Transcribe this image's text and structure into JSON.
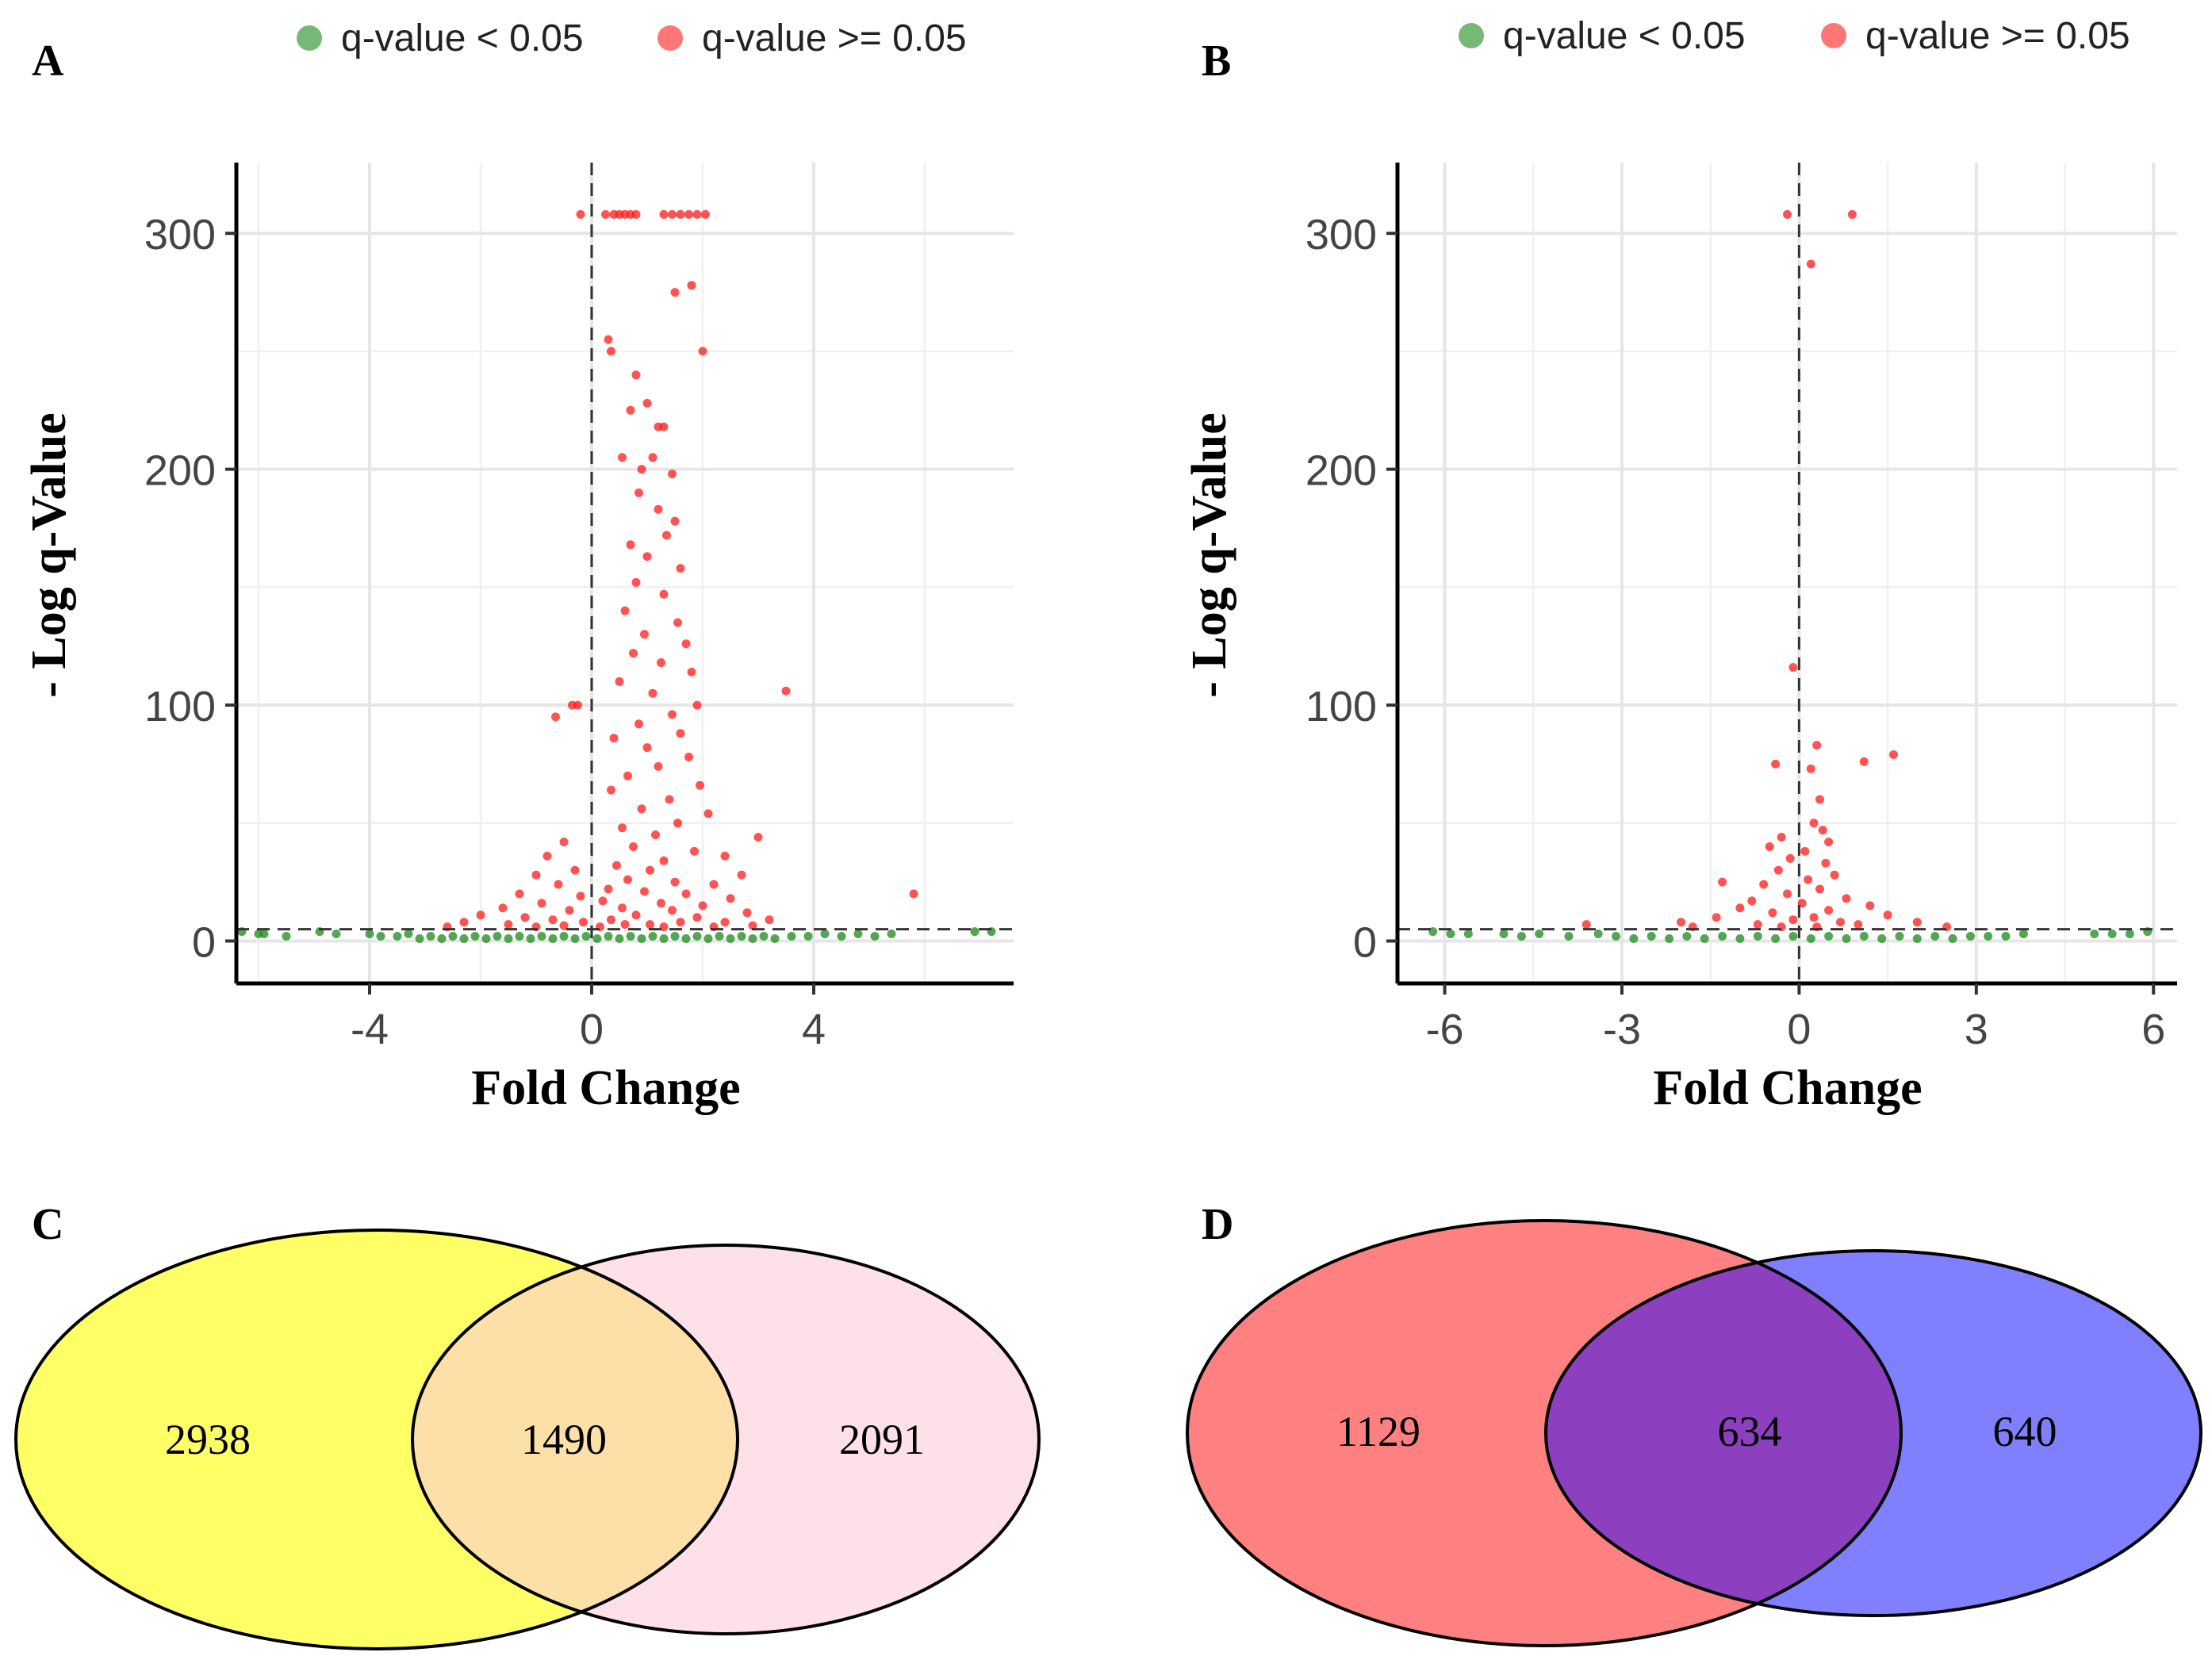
{
  "colors": {
    "significant": "#1a8a1a",
    "nonsignificant": "#ff1a1a",
    "venn_c_left": "#ffff66",
    "venn_c_right": "#fde0e8",
    "venn_c_overlap": "#fde0a8",
    "venn_d_left": "#ff8080",
    "venn_d_right": "#8080ff",
    "venn_d_overlap": "#8c40c0"
  },
  "chart_data": [
    {
      "panel": "A",
      "type": "scatter",
      "title": "",
      "xlabel": "Fold Change",
      "ylabel": "- Log q-Value",
      "xlim": [
        -6.4,
        7.6
      ],
      "ylim": [
        -18,
        330
      ],
      "xticks": [
        -4,
        0,
        4
      ],
      "xtick_labels": [
        "-4",
        "0",
        "4"
      ],
      "yticks": [
        0,
        100,
        200,
        300
      ],
      "ytick_labels": [
        "0",
        "100",
        "200",
        "300"
      ],
      "threshold_y": 5,
      "threshold_x": 0,
      "legend": [
        {
          "label": "q-value < 0.05",
          "color_key": "significant"
        },
        {
          "label": "q-value >= 0.05",
          "color_key": "nonsignificant"
        }
      ],
      "series": [
        {
          "name": "q-value >= 0.05",
          "color_key": "nonsignificant",
          "points": [
            [
              -0.2,
              308
            ],
            [
              0.25,
              308
            ],
            [
              0.4,
              308
            ],
            [
              0.5,
              308
            ],
            [
              0.6,
              308
            ],
            [
              0.7,
              308
            ],
            [
              0.8,
              308
            ],
            [
              1.3,
              308
            ],
            [
              1.45,
              308
            ],
            [
              1.6,
              308
            ],
            [
              1.75,
              308
            ],
            [
              1.9,
              308
            ],
            [
              2.05,
              308
            ],
            [
              1.5,
              275
            ],
            [
              1.8,
              278
            ],
            [
              2.0,
              250
            ],
            [
              0.3,
              255
            ],
            [
              0.35,
              250
            ],
            [
              0.8,
              240
            ],
            [
              1.0,
              228
            ],
            [
              0.7,
              225
            ],
            [
              1.2,
              218
            ],
            [
              1.3,
              218
            ],
            [
              1.1,
              205
            ],
            [
              0.55,
              205
            ],
            [
              0.9,
              200
            ],
            [
              1.45,
              198
            ],
            [
              0.85,
              190
            ],
            [
              1.2,
              183
            ],
            [
              1.5,
              178
            ],
            [
              1.35,
              172
            ],
            [
              0.7,
              168
            ],
            [
              1.0,
              163
            ],
            [
              1.6,
              158
            ],
            [
              0.8,
              152
            ],
            [
              1.3,
              147
            ],
            [
              0.6,
              140
            ],
            [
              1.55,
              135
            ],
            [
              0.95,
              130
            ],
            [
              1.7,
              126
            ],
            [
              0.75,
              122
            ],
            [
              1.25,
              118
            ],
            [
              1.8,
              114
            ],
            [
              0.5,
              110
            ],
            [
              1.1,
              105
            ],
            [
              3.5,
              106
            ],
            [
              -0.35,
              100
            ],
            [
              -0.25,
              100
            ],
            [
              1.9,
              100
            ],
            [
              1.45,
              96
            ],
            [
              0.85,
              92
            ],
            [
              1.6,
              88
            ],
            [
              -0.65,
              95
            ],
            [
              0.4,
              86
            ],
            [
              1.0,
              82
            ],
            [
              1.75,
              78
            ],
            [
              1.2,
              74
            ],
            [
              0.65,
              70
            ],
            [
              1.95,
              66
            ],
            [
              0.35,
              64
            ],
            [
              1.4,
              60
            ],
            [
              0.9,
              56
            ],
            [
              2.1,
              54
            ],
            [
              1.55,
              50
            ],
            [
              0.55,
              48
            ],
            [
              1.15,
              45
            ],
            [
              3.0,
              44
            ],
            [
              -0.5,
              42
            ],
            [
              0.75,
              40
            ],
            [
              1.85,
              38
            ],
            [
              2.4,
              36
            ],
            [
              -0.8,
              36
            ],
            [
              1.3,
              34
            ],
            [
              0.45,
              32
            ],
            [
              1.05,
              30
            ],
            [
              2.7,
              28
            ],
            [
              -0.3,
              30
            ],
            [
              -1.0,
              28
            ],
            [
              0.65,
              26
            ],
            [
              1.5,
              25
            ],
            [
              2.2,
              24
            ],
            [
              -0.6,
              24
            ],
            [
              0.3,
              22
            ],
            [
              0.95,
              21
            ],
            [
              1.7,
              20
            ],
            [
              -1.3,
              20
            ],
            [
              -0.2,
              19
            ],
            [
              2.5,
              18
            ],
            [
              5.8,
              20
            ],
            [
              0.2,
              17
            ],
            [
              1.25,
              16
            ],
            [
              -0.9,
              16
            ],
            [
              2.0,
              15
            ],
            [
              -1.6,
              14
            ],
            [
              0.55,
              14
            ],
            [
              1.45,
              13
            ],
            [
              -0.4,
              13
            ],
            [
              2.8,
              12
            ],
            [
              -2.0,
              11
            ],
            [
              0.8,
              11
            ],
            [
              1.9,
              10
            ],
            [
              -1.2,
              10
            ],
            [
              3.2,
              9
            ],
            [
              -0.7,
              9
            ],
            [
              0.35,
              9
            ],
            [
              1.6,
              8
            ],
            [
              -2.3,
              8
            ],
            [
              2.4,
              8
            ],
            [
              -0.15,
              8
            ],
            [
              1.05,
              7
            ],
            [
              -1.5,
              7
            ],
            [
              0.6,
              7
            ],
            [
              2.9,
              6.5
            ],
            [
              -0.5,
              6.5
            ],
            [
              1.3,
              6
            ],
            [
              -2.6,
              6
            ],
            [
              0.15,
              6
            ],
            [
              2.2,
              6
            ],
            [
              -1.0,
              6
            ]
          ]
        },
        {
          "name": "q-value < 0.05",
          "color_key": "significant",
          "points": [
            [
              -6.3,
              4
            ],
            [
              -6.0,
              3
            ],
            [
              -5.9,
              3
            ],
            [
              -5.5,
              2
            ],
            [
              -4.9,
              4
            ],
            [
              -4.6,
              3
            ],
            [
              -4.0,
              3
            ],
            [
              -3.8,
              2
            ],
            [
              -3.5,
              2
            ],
            [
              -3.3,
              3
            ],
            [
              -3.1,
              1
            ],
            [
              -2.9,
              2
            ],
            [
              -2.7,
              1
            ],
            [
              -2.5,
              2
            ],
            [
              -2.3,
              1
            ],
            [
              -2.1,
              2
            ],
            [
              -1.9,
              1
            ],
            [
              -1.7,
              2
            ],
            [
              -1.5,
              1
            ],
            [
              -1.3,
              2
            ],
            [
              -1.1,
              1
            ],
            [
              -0.9,
              2
            ],
            [
              -0.7,
              1
            ],
            [
              -0.5,
              2
            ],
            [
              -0.3,
              1
            ],
            [
              -0.1,
              2
            ],
            [
              0.1,
              1
            ],
            [
              0.3,
              2
            ],
            [
              0.5,
              1
            ],
            [
              0.7,
              2
            ],
            [
              0.9,
              1
            ],
            [
              1.1,
              2
            ],
            [
              1.3,
              1
            ],
            [
              1.5,
              2
            ],
            [
              1.7,
              1
            ],
            [
              1.9,
              2
            ],
            [
              2.1,
              1
            ],
            [
              2.3,
              2
            ],
            [
              2.5,
              1
            ],
            [
              2.7,
              2
            ],
            [
              2.9,
              1
            ],
            [
              3.1,
              2
            ],
            [
              3.3,
              1
            ],
            [
              3.6,
              2
            ],
            [
              3.9,
              2
            ],
            [
              4.2,
              3
            ],
            [
              4.5,
              2
            ],
            [
              4.8,
              3
            ],
            [
              5.1,
              2
            ],
            [
              5.4,
              3
            ],
            [
              6.9,
              4
            ],
            [
              7.2,
              4
            ]
          ]
        }
      ]
    },
    {
      "panel": "B",
      "type": "scatter",
      "title": "",
      "xlabel": "Fold Change",
      "ylabel": "- Log q-Value",
      "xlim": [
        -6.8,
        6.4
      ],
      "ylim": [
        -18,
        330
      ],
      "xticks": [
        -6,
        -3,
        0,
        3,
        6
      ],
      "xtick_labels": [
        "-6",
        "-3",
        "0",
        "3",
        "6"
      ],
      "yticks": [
        0,
        100,
        200,
        300
      ],
      "ytick_labels": [
        "0",
        "100",
        "200",
        "300"
      ],
      "threshold_y": 5,
      "threshold_x": 0,
      "legend": [
        {
          "label": "q-value < 0.05",
          "color_key": "significant"
        },
        {
          "label": "q-value >= 0.05",
          "color_key": "nonsignificant"
        }
      ],
      "series": [
        {
          "name": "q-value >= 0.05",
          "color_key": "nonsignificant",
          "points": [
            [
              -0.2,
              308
            ],
            [
              0.9,
              308
            ],
            [
              0.2,
              287
            ],
            [
              -0.1,
              116
            ],
            [
              0.3,
              83
            ],
            [
              1.6,
              79
            ],
            [
              1.1,
              76
            ],
            [
              -0.4,
              75
            ],
            [
              0.2,
              73
            ],
            [
              0.35,
              60
            ],
            [
              0.25,
              50
            ],
            [
              0.4,
              47
            ],
            [
              -0.3,
              44
            ],
            [
              0.5,
              42
            ],
            [
              -0.5,
              40
            ],
            [
              0.1,
              38
            ],
            [
              -0.15,
              35
            ],
            [
              0.45,
              33
            ],
            [
              -0.35,
              30
            ],
            [
              0.6,
              28
            ],
            [
              0.15,
              26
            ],
            [
              -0.6,
              24
            ],
            [
              -1.3,
              25
            ],
            [
              0.35,
              22
            ],
            [
              -0.2,
              20
            ],
            [
              0.8,
              18
            ],
            [
              -0.8,
              17
            ],
            [
              0.05,
              16
            ],
            [
              1.2,
              15
            ],
            [
              -1.0,
              14
            ],
            [
              0.5,
              13
            ],
            [
              -0.45,
              12
            ],
            [
              1.5,
              11
            ],
            [
              -1.4,
              10
            ],
            [
              0.25,
              10
            ],
            [
              -0.1,
              9
            ],
            [
              2.0,
              8
            ],
            [
              -2.0,
              8
            ],
            [
              0.7,
              8
            ],
            [
              -0.7,
              7
            ],
            [
              1.0,
              7
            ],
            [
              -3.6,
              7
            ],
            [
              0.3,
              6
            ],
            [
              -1.8,
              6
            ],
            [
              2.5,
              6
            ],
            [
              -0.3,
              6
            ]
          ]
        },
        {
          "name": "q-value < 0.05",
          "color_key": "significant",
          "points": [
            [
              -6.2,
              4
            ],
            [
              -5.9,
              3
            ],
            [
              -5.6,
              3
            ],
            [
              -5.0,
              3
            ],
            [
              -4.7,
              2
            ],
            [
              -4.4,
              3
            ],
            [
              -3.9,
              2
            ],
            [
              -3.4,
              3
            ],
            [
              -3.1,
              2
            ],
            [
              -2.8,
              1
            ],
            [
              -2.5,
              2
            ],
            [
              -2.2,
              1
            ],
            [
              -1.9,
              2
            ],
            [
              -1.6,
              1
            ],
            [
              -1.3,
              2
            ],
            [
              -1.0,
              1
            ],
            [
              -0.7,
              2
            ],
            [
              -0.4,
              1
            ],
            [
              -0.1,
              2
            ],
            [
              0.2,
              1
            ],
            [
              0.5,
              2
            ],
            [
              0.8,
              1
            ],
            [
              1.1,
              2
            ],
            [
              1.4,
              1
            ],
            [
              1.7,
              2
            ],
            [
              2.0,
              1
            ],
            [
              2.3,
              2
            ],
            [
              2.6,
              1
            ],
            [
              2.9,
              2
            ],
            [
              3.2,
              2
            ],
            [
              3.5,
              2
            ],
            [
              3.8,
              3
            ],
            [
              5.0,
              3
            ],
            [
              5.3,
              3
            ],
            [
              5.6,
              3
            ],
            [
              5.9,
              4
            ]
          ]
        }
      ]
    }
  ],
  "panels": {
    "a_letter": "A",
    "b_letter": "B",
    "c_letter": "C",
    "d_letter": "D"
  },
  "venn": {
    "c": {
      "left": "2938",
      "overlap": "1490",
      "right": "2091"
    },
    "d": {
      "left": "1129",
      "overlap": "634",
      "right": "640"
    }
  }
}
